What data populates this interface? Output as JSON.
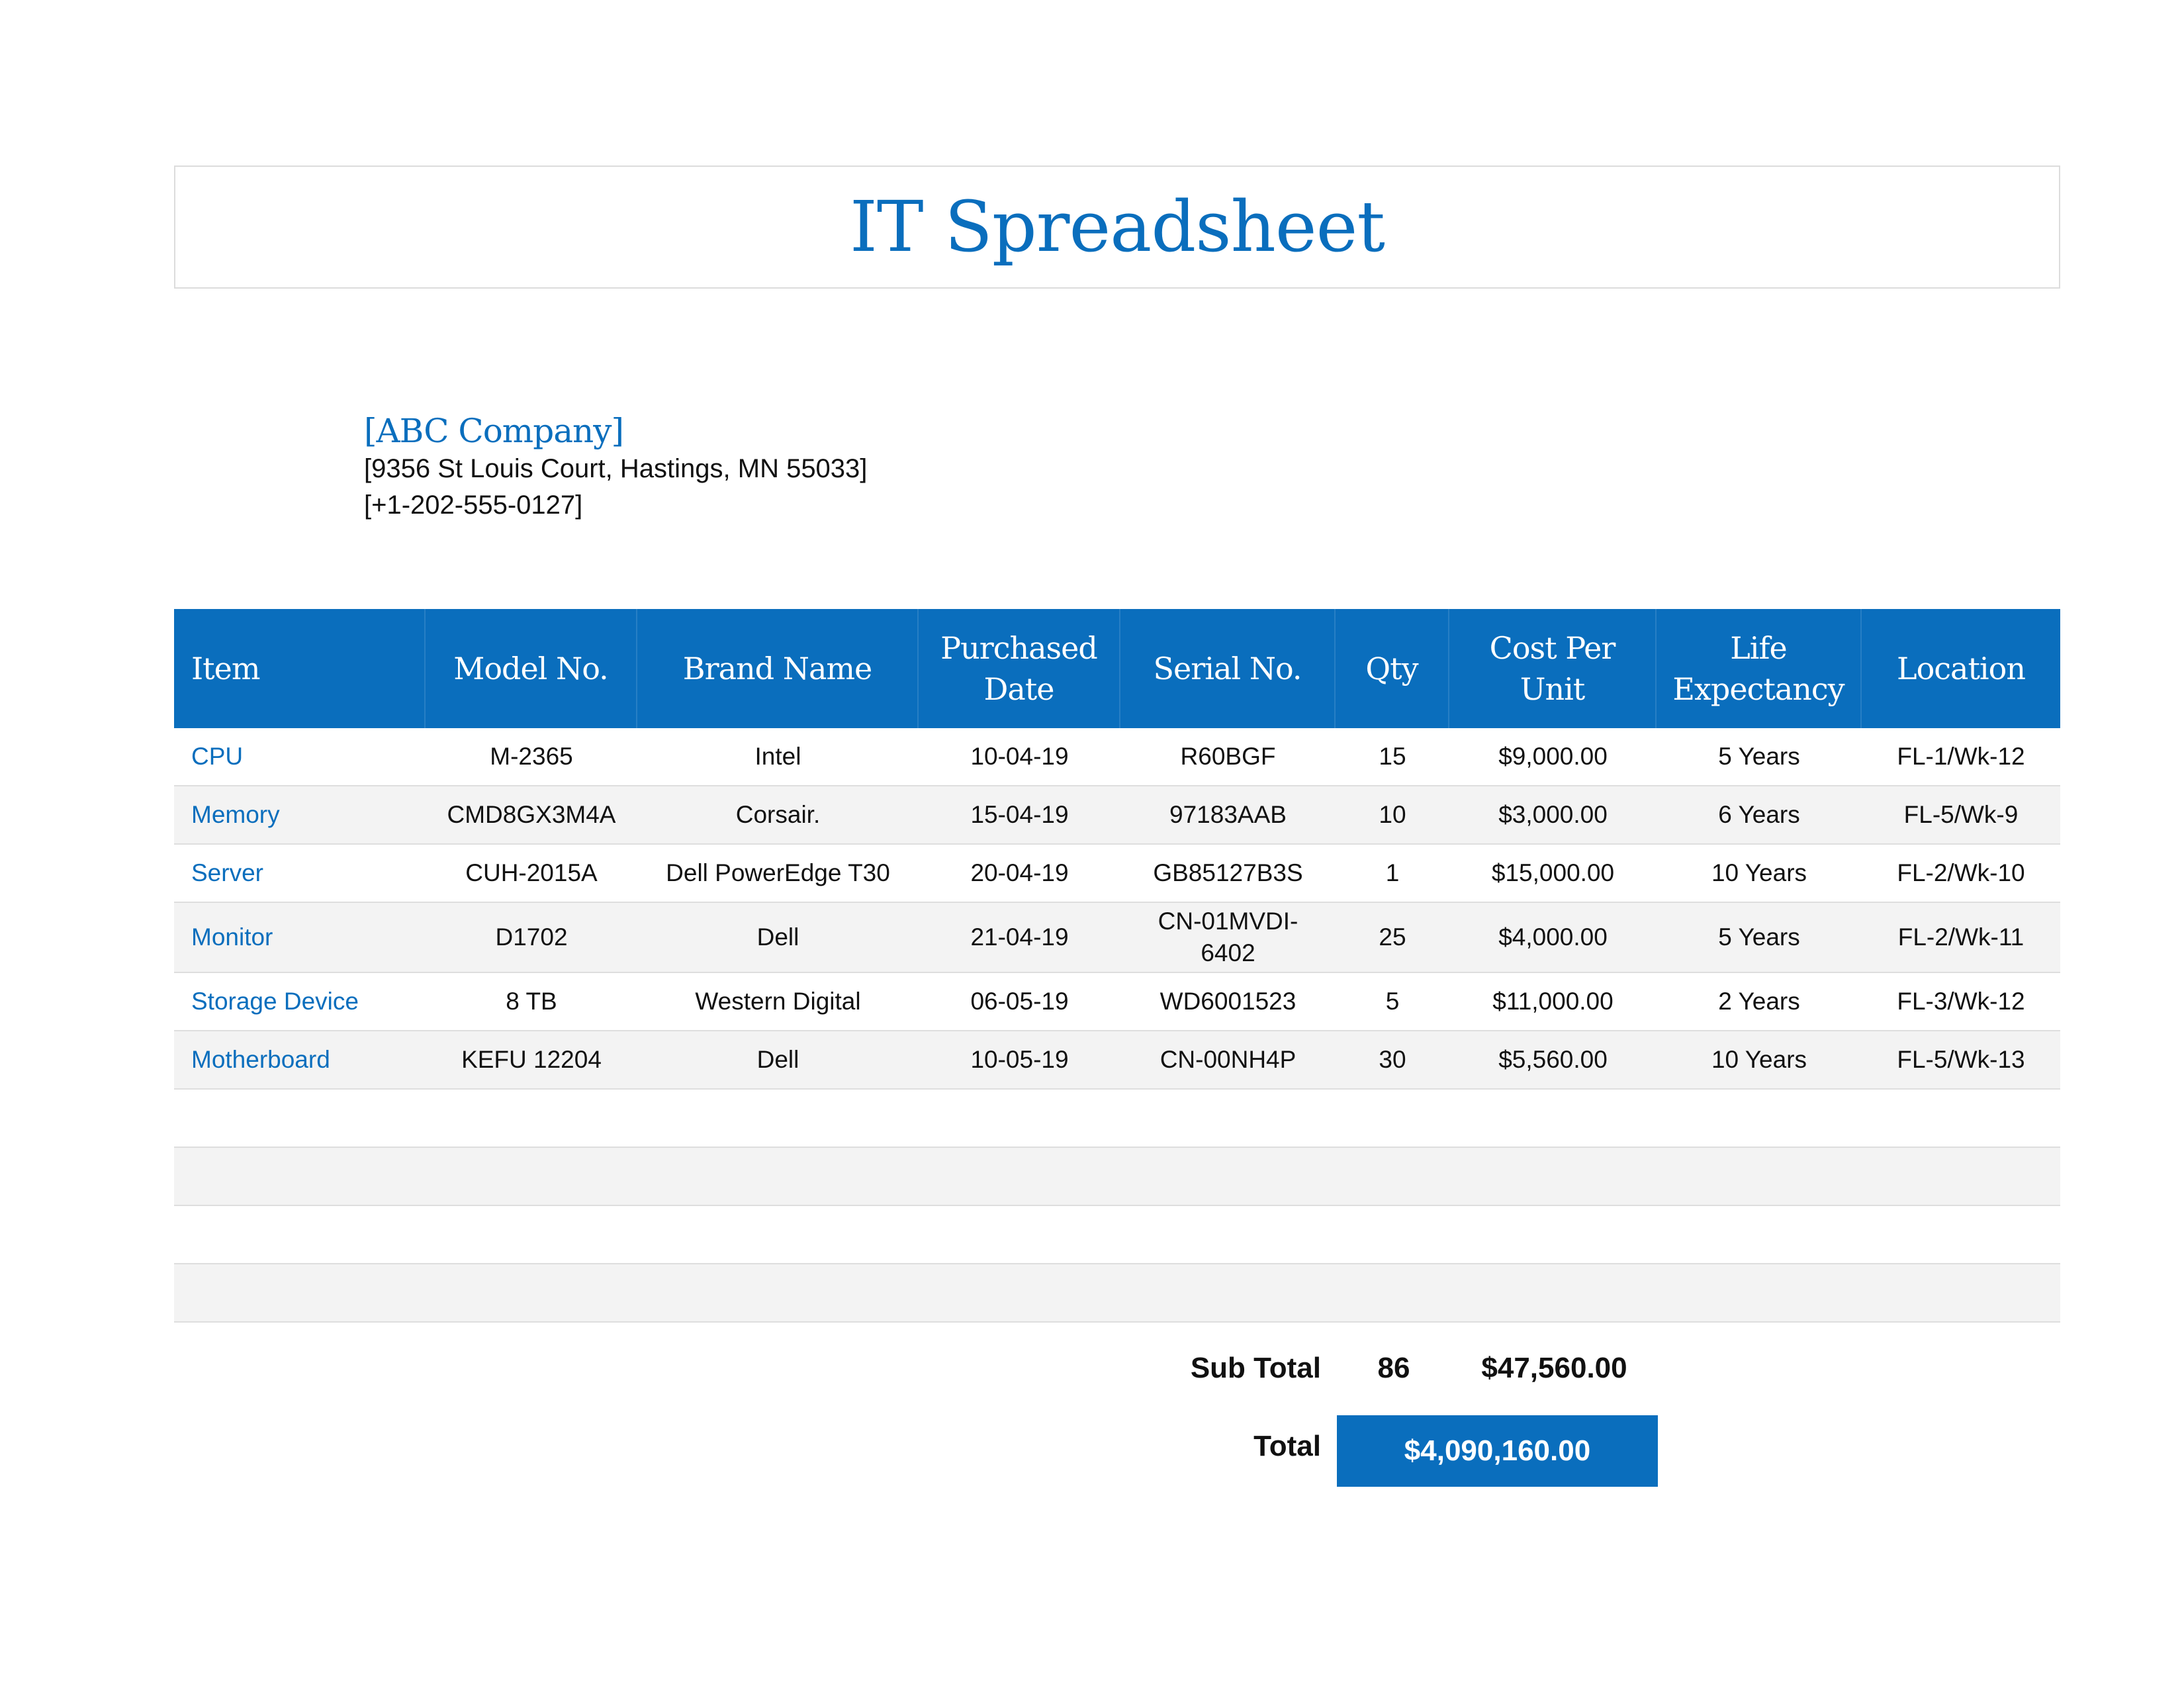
{
  "title": "IT Spreadsheet",
  "company": {
    "name": "[ABC Company]",
    "address": "[9356 St Louis Court, Hastings, MN 55033]",
    "phone": "[+1-202-555-0127]"
  },
  "table": {
    "headers": {
      "item": "Item",
      "model": "Model No.",
      "brand": "Brand Name",
      "date": "Purchased\nDate",
      "serial": "Serial No.",
      "qty": "Qty",
      "cost": "Cost Per\nUnit",
      "life": "Life\nExpectancy",
      "location": "Location"
    },
    "rows": [
      {
        "item": "CPU",
        "model": "M-2365",
        "brand": "Intel",
        "date": "10-04-19",
        "serial": "R60BGF",
        "qty": "15",
        "cost": "$9,000.00",
        "life": "5 Years",
        "location": "FL-1/Wk-12"
      },
      {
        "item": "Memory",
        "model": "CMD8GX3M4A",
        "brand": "Corsair.",
        "date": "15-04-19",
        "serial": "97183AAB",
        "qty": "10",
        "cost": "$3,000.00",
        "life": "6 Years",
        "location": "FL-5/Wk-9"
      },
      {
        "item": "Server",
        "model": "CUH-2015A",
        "brand": "Dell PowerEdge T30",
        "date": "20-04-19",
        "serial": "GB85127B3S",
        "qty": "1",
        "cost": "$15,000.00",
        "life": "10 Years",
        "location": "FL-2/Wk-10"
      },
      {
        "item": "Monitor",
        "model": "D1702",
        "brand": "Dell",
        "date": "21-04-19",
        "serial": "CN-01MVDI-\n6402",
        "qty": "25",
        "cost": "$4,000.00",
        "life": "5 Years",
        "location": "FL-2/Wk-11"
      },
      {
        "item": "Storage Device",
        "model": "8 TB",
        "brand": "Western Digital",
        "date": "06-05-19",
        "serial": "WD6001523",
        "qty": "5",
        "cost": "$11,000.00",
        "life": "2 Years",
        "location": "FL-3/Wk-12"
      },
      {
        "item": "Motherboard",
        "model": "KEFU 12204",
        "brand": "Dell",
        "date": "10-05-19",
        "serial": "CN-00NH4P",
        "qty": "30",
        "cost": "$5,560.00",
        "life": "10 Years",
        "location": "FL-5/Wk-13"
      }
    ]
  },
  "summary": {
    "subtotal_label": "Sub Total",
    "subtotal_qty": "86",
    "subtotal_cost": "$47,560.00",
    "total_label": "Total",
    "total_value": "$4,090,160.00"
  },
  "colors": {
    "accent": "#0a6ebd",
    "row_alt": "#f3f3f3"
  }
}
